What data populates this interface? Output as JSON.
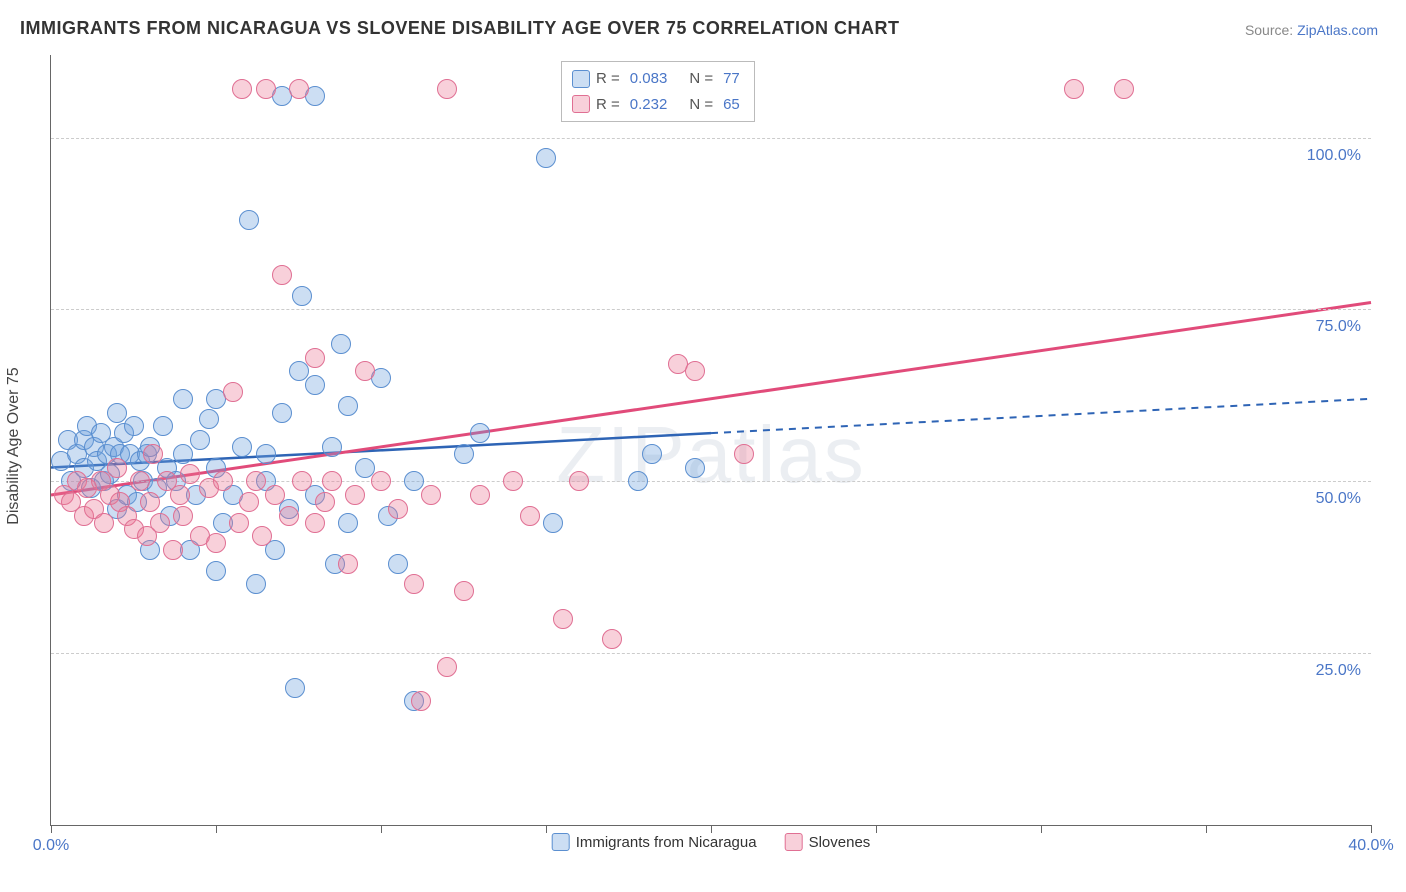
{
  "title": "IMMIGRANTS FROM NICARAGUA VS SLOVENE DISABILITY AGE OVER 75 CORRELATION CHART",
  "source_label": "Source:",
  "source_value": "ZipAtlas.com",
  "ylabel": "Disability Age Over 75",
  "watermark": "ZIPatlas",
  "chart": {
    "type": "scatter",
    "xlim": [
      0,
      40
    ],
    "ylim": [
      0,
      112
    ],
    "xticks": [
      0,
      5,
      10,
      15,
      20,
      25,
      30,
      35,
      40
    ],
    "yticks": [
      25,
      50,
      75,
      100
    ],
    "xtick_labels": {
      "0": "0.0%",
      "40": "40.0%"
    },
    "ytick_labels": {
      "25": "25.0%",
      "50": "50.0%",
      "75": "75.0%",
      "100": "100.0%"
    },
    "background_color": "#ffffff",
    "grid_color": "#cccccc",
    "marker_radius": 10,
    "marker_border_width": 1.5,
    "series": [
      {
        "name": "Immigrants from Nicaragua",
        "fill": "rgba(108,160,220,0.35)",
        "stroke": "#5b8fd0",
        "r_value": "0.083",
        "n_value": "77",
        "trend": {
          "x1": 0,
          "y1": 52,
          "x2": 40,
          "y2": 62,
          "color": "#2e64b5",
          "width": 2.5,
          "solid_until_x": 20
        },
        "points": [
          [
            0.3,
            53
          ],
          [
            0.5,
            56
          ],
          [
            0.6,
            50
          ],
          [
            0.8,
            54
          ],
          [
            1.0,
            56
          ],
          [
            1.0,
            52
          ],
          [
            1.1,
            58
          ],
          [
            1.2,
            49
          ],
          [
            1.3,
            55
          ],
          [
            1.4,
            53
          ],
          [
            1.5,
            57
          ],
          [
            1.6,
            50
          ],
          [
            1.7,
            54
          ],
          [
            1.8,
            51
          ],
          [
            1.9,
            55
          ],
          [
            2.0,
            60
          ],
          [
            2.0,
            46
          ],
          [
            2.1,
            54
          ],
          [
            2.2,
            57
          ],
          [
            2.3,
            48
          ],
          [
            2.4,
            54
          ],
          [
            2.5,
            58
          ],
          [
            2.6,
            47
          ],
          [
            2.7,
            53
          ],
          [
            2.8,
            50
          ],
          [
            2.9,
            54
          ],
          [
            3.0,
            40
          ],
          [
            3.0,
            55
          ],
          [
            3.2,
            49
          ],
          [
            3.4,
            58
          ],
          [
            3.5,
            52
          ],
          [
            3.6,
            45
          ],
          [
            3.8,
            50
          ],
          [
            4.0,
            62
          ],
          [
            4.0,
            54
          ],
          [
            4.2,
            40
          ],
          [
            4.4,
            48
          ],
          [
            4.5,
            56
          ],
          [
            4.8,
            59
          ],
          [
            5.0,
            37
          ],
          [
            5.0,
            52
          ],
          [
            5.0,
            62
          ],
          [
            5.2,
            44
          ],
          [
            5.5,
            48
          ],
          [
            5.8,
            55
          ],
          [
            6.0,
            88
          ],
          [
            6.2,
            35
          ],
          [
            6.5,
            54
          ],
          [
            6.5,
            50
          ],
          [
            6.8,
            40
          ],
          [
            7.0,
            60
          ],
          [
            7.0,
            106
          ],
          [
            7.2,
            46
          ],
          [
            7.4,
            20
          ],
          [
            7.5,
            66
          ],
          [
            7.6,
            77
          ],
          [
            8.0,
            64
          ],
          [
            8.0,
            48
          ],
          [
            8.0,
            106
          ],
          [
            8.5,
            55
          ],
          [
            8.6,
            38
          ],
          [
            8.8,
            70
          ],
          [
            9.0,
            61
          ],
          [
            9.0,
            44
          ],
          [
            9.5,
            52
          ],
          [
            10.0,
            65
          ],
          [
            10.2,
            45
          ],
          [
            10.5,
            38
          ],
          [
            11.0,
            18
          ],
          [
            11.0,
            50
          ],
          [
            12.5,
            54
          ],
          [
            13.0,
            57
          ],
          [
            15.0,
            97
          ],
          [
            15.2,
            44
          ],
          [
            17.8,
            50
          ],
          [
            18.2,
            54
          ],
          [
            19.5,
            52
          ]
        ]
      },
      {
        "name": "Slovenes",
        "fill": "rgba(235,120,150,0.35)",
        "stroke": "#e06f93",
        "r_value": "0.232",
        "n_value": "65",
        "trend": {
          "x1": 0,
          "y1": 48,
          "x2": 40,
          "y2": 76,
          "color": "#e14b7a",
          "width": 3,
          "solid_until_x": 40
        },
        "points": [
          [
            0.4,
            48
          ],
          [
            0.6,
            47
          ],
          [
            0.8,
            50
          ],
          [
            1.0,
            45
          ],
          [
            1.1,
            49
          ],
          [
            1.3,
            46
          ],
          [
            1.5,
            50
          ],
          [
            1.6,
            44
          ],
          [
            1.8,
            48
          ],
          [
            2.0,
            52
          ],
          [
            2.1,
            47
          ],
          [
            2.3,
            45
          ],
          [
            2.5,
            43
          ],
          [
            2.7,
            50
          ],
          [
            2.9,
            42
          ],
          [
            3.0,
            47
          ],
          [
            3.1,
            54
          ],
          [
            3.3,
            44
          ],
          [
            3.5,
            50
          ],
          [
            3.7,
            40
          ],
          [
            3.9,
            48
          ],
          [
            4.0,
            45
          ],
          [
            4.2,
            51
          ],
          [
            4.5,
            42
          ],
          [
            4.8,
            49
          ],
          [
            5.0,
            41
          ],
          [
            5.2,
            50
          ],
          [
            5.5,
            63
          ],
          [
            5.7,
            44
          ],
          [
            5.8,
            107
          ],
          [
            6.0,
            47
          ],
          [
            6.2,
            50
          ],
          [
            6.4,
            42
          ],
          [
            6.5,
            107
          ],
          [
            6.8,
            48
          ],
          [
            7.0,
            80
          ],
          [
            7.2,
            45
          ],
          [
            7.5,
            107
          ],
          [
            7.6,
            50
          ],
          [
            8.0,
            44
          ],
          [
            8.0,
            68
          ],
          [
            8.3,
            47
          ],
          [
            8.5,
            50
          ],
          [
            9.0,
            38
          ],
          [
            9.2,
            48
          ],
          [
            9.5,
            66
          ],
          [
            10.0,
            50
          ],
          [
            10.5,
            46
          ],
          [
            11.0,
            35
          ],
          [
            11.2,
            18
          ],
          [
            11.5,
            48
          ],
          [
            12.0,
            107
          ],
          [
            12.0,
            23
          ],
          [
            12.5,
            34
          ],
          [
            13.0,
            48
          ],
          [
            14.0,
            50
          ],
          [
            14.5,
            45
          ],
          [
            15.5,
            30
          ],
          [
            16.0,
            50
          ],
          [
            17.0,
            27
          ],
          [
            19.0,
            67
          ],
          [
            19.5,
            66
          ],
          [
            21.0,
            54
          ],
          [
            31.0,
            107
          ],
          [
            32.5,
            107
          ]
        ]
      }
    ]
  },
  "legend_top": {
    "r_label": "R =",
    "n_label": "N ="
  },
  "bottom_legend_labels": [
    "Immigrants from Nicaragua",
    "Slovenes"
  ]
}
